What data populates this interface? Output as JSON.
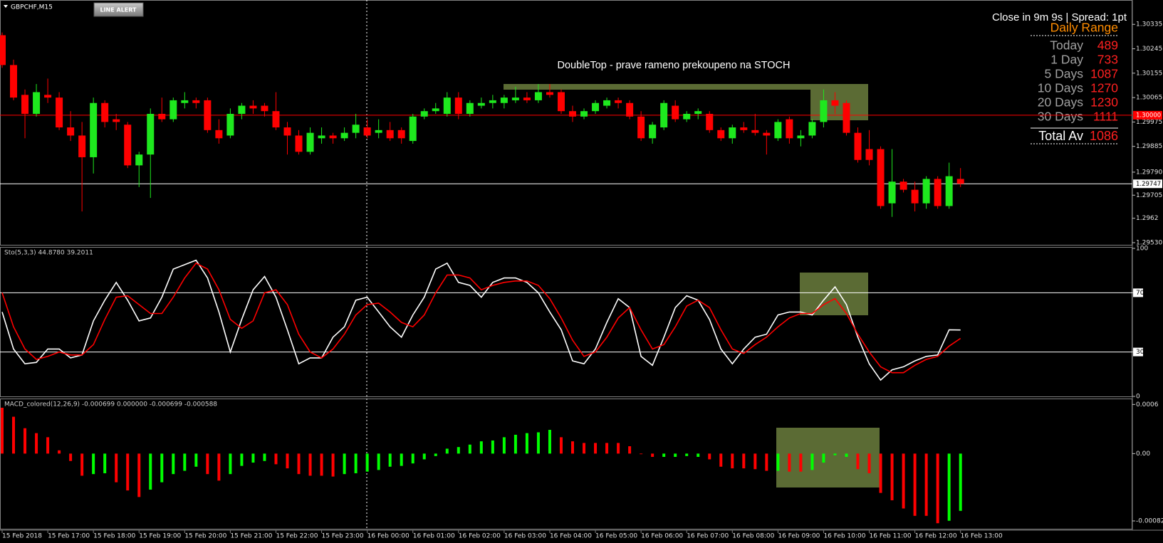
{
  "toolbar": {
    "button": "LINE ALERT"
  },
  "info_panel": {
    "status": "Close in 9m 9s | Spread: 1pt",
    "title": "Daily Range",
    "rows": [
      {
        "label": "Today",
        "value": 489
      },
      {
        "label": "1 Day",
        "value": 733
      },
      {
        "label": "5 Days",
        "value": 1087
      },
      {
        "label": "10 Days",
        "value": 1270
      },
      {
        "label": "20 Days",
        "value": 1230
      },
      {
        "label": "30 Days",
        "value": 1111
      }
    ],
    "total": {
      "label": "Total Av",
      "value": 1086
    }
  },
  "chart_data": [
    {
      "type": "candlestick",
      "title": "GBPCHF,M15",
      "annotation": "DoubleTop -  prave rameno prekoupeno na STOCH",
      "up_color": "#1ee81e",
      "down_color": "#ff0000",
      "categories": [
        "15 Feb 2018",
        null,
        null,
        null,
        "15 Feb 17:00",
        null,
        null,
        null,
        "15 Feb 18:00",
        null,
        null,
        null,
        "15 Feb 19:00",
        null,
        null,
        null,
        "15 Feb 20:00",
        null,
        null,
        null,
        "15 Feb 21:00",
        null,
        null,
        null,
        "15 Feb 22:00",
        null,
        null,
        null,
        "15 Feb 23:00",
        null,
        null,
        null,
        "16 Feb 00:00",
        null,
        null,
        null,
        "16 Feb 01:00",
        null,
        null,
        null,
        "16 Feb 02:00",
        null,
        null,
        null,
        "16 Feb 03:00",
        null,
        null,
        null,
        "16 Feb 04:00",
        null,
        null,
        null,
        "16 Feb 05:00",
        null,
        null,
        null,
        "16 Feb 06:00",
        null,
        null,
        null,
        "16 Feb 07:00",
        null,
        null,
        null,
        "16 Feb 08:00",
        null,
        null,
        null,
        "16 Feb 09:00",
        null,
        null,
        null,
        "16 Feb 10:00",
        null,
        null,
        null,
        "16 Feb 11:00",
        null,
        null,
        null,
        "16 Feb 12:00",
        null,
        null,
        null,
        "16 Feb 13:00"
      ],
      "open": [
        1.30295,
        1.30185,
        1.30075,
        1.30005,
        1.30075,
        1.30065,
        1.29955,
        1.29925,
        1.29845,
        1.30045,
        1.29985,
        1.29965,
        1.29815,
        1.29855,
        1.30005,
        1.29985,
        1.30045,
        1.30055,
        1.30055,
        1.29945,
        1.29925,
        1.30005,
        1.30035,
        1.30035,
        1.30015,
        1.29955,
        1.29925,
        1.29865,
        1.29915,
        1.29925,
        1.29915,
        1.29935,
        1.29955,
        1.29935,
        1.29945,
        1.29945,
        1.29905,
        1.29995,
        1.30015,
        1.30005,
        1.30065,
        1.30005,
        1.30035,
        1.30045,
        1.30045,
        1.30055,
        1.30065,
        1.30055,
        1.30085,
        1.30085,
        1.30015,
        1.29995,
        1.30015,
        1.30035,
        1.30055,
        1.30045,
        1.29995,
        1.29915,
        1.29955,
        1.30035,
        1.29985,
        1.30005,
        1.30005,
        1.29945,
        1.29915,
        1.29955,
        1.29945,
        1.29935,
        1.29915,
        1.29985,
        1.29915,
        1.29925,
        1.29975,
        1.30055,
        1.30045,
        1.29935,
        1.29875,
        1.29875,
        1.29675,
        1.29755,
        1.29725,
        1.29675,
        1.29765,
        1.29665,
        1.29765
      ],
      "high": [
        1.30305,
        1.30205,
        1.30095,
        1.30115,
        1.30135,
        1.30085,
        1.30015,
        1.29975,
        1.30065,
        1.30055,
        1.30005,
        1.29975,
        1.29865,
        1.30025,
        1.30065,
        1.30065,
        1.30085,
        1.30065,
        1.30065,
        1.29985,
        1.30025,
        1.30045,
        1.30055,
        1.30045,
        1.30085,
        1.29975,
        1.29945,
        1.29955,
        1.29955,
        1.29935,
        1.29955,
        1.30005,
        1.29985,
        1.29985,
        1.29975,
        1.29955,
        1.30005,
        1.30025,
        1.30045,
        1.30085,
        1.30085,
        1.30055,
        1.30065,
        1.30075,
        1.30075,
        1.30105,
        1.30085,
        1.30115,
        1.30115,
        1.30095,
        1.30035,
        1.30025,
        1.30055,
        1.30065,
        1.30065,
        1.30055,
        1.30015,
        1.29975,
        1.30055,
        1.30055,
        1.30015,
        1.30025,
        1.30015,
        1.29955,
        1.29965,
        1.29975,
        1.30005,
        1.29945,
        1.29985,
        1.29995,
        1.29945,
        1.29985,
        1.30095,
        1.30085,
        1.30055,
        1.29955,
        1.29945,
        1.29885,
        1.29875,
        1.29765,
        1.29755,
        1.29775,
        1.29775,
        1.29825,
        1.29805
      ],
      "low": [
        1.30175,
        1.30055,
        1.29915,
        1.29995,
        1.30045,
        1.29945,
        1.29905,
        1.29645,
        1.29785,
        1.29955,
        1.29945,
        1.29805,
        1.29735,
        1.29695,
        1.29975,
        1.29975,
        1.30025,
        1.30025,
        1.29935,
        1.29895,
        1.29915,
        1.29985,
        1.30005,
        1.29995,
        1.29945,
        1.29855,
        1.29855,
        1.29855,
        1.29895,
        1.29895,
        1.29905,
        1.29915,
        1.29915,
        1.29915,
        1.29905,
        1.29895,
        1.29895,
        1.29985,
        1.30005,
        1.29995,
        1.29985,
        1.29995,
        1.30025,
        1.30025,
        1.30025,
        1.30045,
        1.30045,
        1.30045,
        1.30065,
        1.30005,
        1.29975,
        1.29985,
        1.30005,
        1.30025,
        1.30025,
        1.29985,
        1.29905,
        1.29895,
        1.29945,
        1.29975,
        1.29975,
        1.29985,
        1.29935,
        1.29905,
        1.29895,
        1.29935,
        1.29925,
        1.29855,
        1.29905,
        1.29895,
        1.29885,
        1.29915,
        1.29955,
        1.30005,
        1.29925,
        1.29825,
        1.29815,
        1.29655,
        1.29625,
        1.29715,
        1.29645,
        1.29655,
        1.29655,
        1.29655,
        1.29735
      ],
      "close": [
        1.30185,
        1.30065,
        1.30005,
        1.30085,
        1.30065,
        1.29955,
        1.29925,
        1.29845,
        1.30045,
        1.29975,
        1.29975,
        1.29815,
        1.29855,
        1.30005,
        1.29985,
        1.30055,
        1.30055,
        1.30045,
        1.29945,
        1.29915,
        1.30005,
        1.30035,
        1.30025,
        1.30015,
        1.29955,
        1.29925,
        1.29865,
        1.29935,
        1.29925,
        1.29915,
        1.29935,
        1.29965,
        1.29925,
        1.29945,
        1.29915,
        1.29915,
        1.29995,
        1.30015,
        1.30025,
        1.30065,
        1.30005,
        1.30045,
        1.30045,
        1.30055,
        1.30065,
        1.30065,
        1.30055,
        1.30085,
        1.30075,
        1.30015,
        1.29995,
        1.30015,
        1.30045,
        1.30055,
        1.30045,
        1.29995,
        1.29915,
        1.29965,
        1.30045,
        1.29985,
        1.30005,
        1.30015,
        1.29945,
        1.29915,
        1.29955,
        1.29945,
        1.29935,
        1.29925,
        1.29975,
        1.29915,
        1.29925,
        1.29975,
        1.30055,
        1.30035,
        1.29935,
        1.29835,
        1.29835,
        1.29665,
        1.29755,
        1.29725,
        1.29675,
        1.29765,
        1.29665,
        1.29775,
        1.29747
      ],
      "ylim": [
        1.29522,
        1.30417
      ],
      "yticks": [
        1.30335,
        1.30245,
        1.30155,
        1.30065,
        1.29975,
        1.29885,
        {
          "value": 1.2979,
          "label": "1.29790"
        },
        1.29705,
        1.2962,
        {
          "value": 1.2953,
          "label": "1.29530"
        }
      ],
      "price_lines": [
        {
          "value": 1.3,
          "label": "1.30000",
          "color": "#ff0000",
          "label_color": "#ffffff"
        },
        {
          "value": 1.29747,
          "color": "#ffffff",
          "label_color": "#000000"
        }
      ]
    },
    {
      "type": "line",
      "title": "Sto(5,3,3) 44.8780 39.2011",
      "series": [
        {
          "color": "#ffffff",
          "values": [
            57,
            32,
            22,
            23,
            32,
            32,
            26,
            28,
            51,
            65,
            77,
            65,
            51,
            53,
            67,
            86,
            89,
            92,
            80,
            57,
            30,
            52,
            72,
            81,
            67,
            45,
            22,
            26,
            26,
            40,
            47,
            65,
            67,
            57,
            47,
            40,
            55,
            67,
            86,
            90,
            77,
            75,
            67,
            77,
            80,
            80,
            77,
            70,
            57,
            45,
            24,
            22,
            32,
            50,
            66,
            60,
            27,
            21,
            40,
            60,
            68,
            65,
            52,
            32,
            22,
            32,
            40,
            42,
            55,
            57,
            57,
            55,
            65,
            74,
            62,
            40,
            22,
            11,
            18,
            20,
            24,
            27,
            28,
            45,
            44.878
          ]
        },
        {
          "color": "#ff0000",
          "values": [
            70,
            47,
            32,
            25,
            27,
            30,
            28,
            28,
            35,
            52,
            67,
            68,
            62,
            56,
            56,
            67,
            80,
            90,
            86,
            72,
            52,
            46,
            51,
            70,
            72,
            62,
            42,
            30,
            26,
            32,
            42,
            55,
            62,
            63,
            57,
            50,
            47,
            55,
            70,
            82,
            82,
            80,
            72,
            75,
            77,
            78,
            78,
            75,
            66,
            53,
            38,
            27,
            30,
            40,
            53,
            60,
            45,
            32,
            35,
            47,
            61,
            65,
            60,
            45,
            32,
            29,
            35,
            40,
            47,
            53,
            56,
            56,
            62,
            66,
            56,
            42,
            30,
            20,
            16,
            16,
            21,
            25,
            27,
            34,
            39.2011
          ]
        }
      ],
      "ylim": [
        0,
        100
      ],
      "yticks": [
        100,
        70,
        30,
        0
      ],
      "levels": [
        70,
        30
      ]
    },
    {
      "type": "bar",
      "title": "MACD_colored(12,26,9) -0.000699 0.000000 -0.000699 -0.000588",
      "values": [
        0.00056,
        0.00045,
        0.00031,
        0.00025,
        0.0002,
        4e-05,
        -9e-05,
        -0.00027,
        -0.00025,
        -0.00024,
        -0.00035,
        -0.00045,
        -0.00053,
        -0.00044,
        -0.00035,
        -0.00025,
        -0.00021,
        -0.00016,
        -0.00025,
        -0.00033,
        -0.00025,
        -0.00015,
        -0.00011,
        -9e-05,
        -0.00013,
        -0.00018,
        -0.00025,
        -0.00027,
        -0.00027,
        -0.00028,
        -0.00025,
        -0.00024,
        -0.00022,
        -0.0002,
        -0.00016,
        -0.00015,
        -0.00012,
        -7e-05,
        -3e-05,
        6e-05,
        8e-05,
        0.00011,
        0.00015,
        0.00016,
        0.0002,
        0.00023,
        0.00025,
        0.00026,
        0.00029,
        0.0002,
        0.00015,
        0.00013,
        0.00013,
        0.00013,
        0.00013,
        9e-05,
        0,
        -4e-05,
        -4e-05,
        -4e-05,
        -3e-05,
        -4e-05,
        -7e-05,
        -0.00016,
        -0.00018,
        -0.00018,
        -0.00019,
        -0.00021,
        -0.00021,
        -0.00022,
        -0.00022,
        -0.0002,
        -0.00011,
        -2e-05,
        -4e-05,
        -0.00019,
        -0.00024,
        -0.00048,
        -0.00057,
        -0.00067,
        -0.00076,
        -0.00076,
        -0.00085,
        -0.00082,
        -0.000699
      ],
      "colors": [
        "red",
        "red",
        "red",
        "red",
        "red",
        "red",
        "red",
        "red",
        "lime",
        "lime",
        "red",
        "red",
        "red",
        "lime",
        "lime",
        "lime",
        "lime",
        "lime",
        "red",
        "red",
        "lime",
        "lime",
        "lime",
        "lime",
        "red",
        "red",
        "red",
        "red",
        "red",
        "red",
        "lime",
        "lime",
        "lime",
        "lime",
        "lime",
        "lime",
        "lime",
        "lime",
        "lime",
        "lime",
        "lime",
        "lime",
        "lime",
        "lime",
        "lime",
        "lime",
        "lime",
        "lime",
        "lime",
        "red",
        "red",
        "red",
        "red",
        "red",
        "red",
        "red",
        "red",
        "red",
        "lime",
        "lime",
        "lime",
        "lime",
        "red",
        "red",
        "red",
        "red",
        "red",
        "red",
        "lime",
        "red",
        "red",
        "lime",
        "lime",
        "lime",
        "lime",
        "red",
        "red",
        "red",
        "red",
        "red",
        "red",
        "red",
        "red",
        "lime",
        "lime"
      ],
      "ylim": [
        -0.000909,
        0.000655
      ],
      "yticks": [
        0.0006,
        {
          "value": 0,
          "label": "0.00"
        },
        -0.000822
      ]
    }
  ]
}
